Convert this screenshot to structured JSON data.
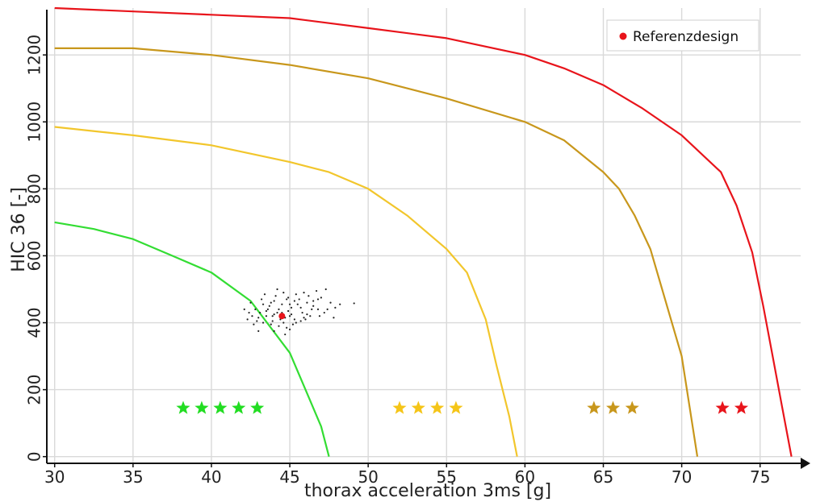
{
  "chart_data": {
    "type": "line",
    "xlabel": "thorax acceleration 3ms [g]",
    "ylabel": "HIC 36 [-]",
    "xlim": [
      29.5,
      78
    ],
    "ylim": [
      -20,
      1340
    ],
    "xticks": [
      30,
      35,
      40,
      45,
      50,
      55,
      60,
      65,
      70,
      75
    ],
    "yticks": [
      0,
      200,
      400,
      600,
      800,
      1000,
      1200
    ],
    "grid": true,
    "legend": {
      "placement": "top-right",
      "entries": [
        {
          "label": "Referenzdesign",
          "color": "#e8141b",
          "marker": "dot"
        }
      ]
    },
    "series": [
      {
        "color": "#33dd33",
        "points": [
          [
            30,
            700
          ],
          [
            32.5,
            680
          ],
          [
            35,
            650
          ],
          [
            37.5,
            600
          ],
          [
            40,
            550
          ],
          [
            42.5,
            465
          ],
          [
            45,
            310
          ],
          [
            46,
            200
          ],
          [
            47,
            90
          ],
          [
            47.5,
            0
          ]
        ]
      },
      {
        "color": "#f2c62c",
        "points": [
          [
            30,
            985
          ],
          [
            35,
            960
          ],
          [
            40,
            930
          ],
          [
            45,
            880
          ],
          [
            47.5,
            850
          ],
          [
            50,
            800
          ],
          [
            52.5,
            720
          ],
          [
            55,
            620
          ],
          [
            56.3,
            550
          ],
          [
            57.5,
            410
          ],
          [
            58.2,
            270
          ],
          [
            59,
            120
          ],
          [
            59.5,
            0
          ]
        ]
      },
      {
        "color": "#c8971c",
        "points": [
          [
            30,
            1220
          ],
          [
            35,
            1220
          ],
          [
            40,
            1200
          ],
          [
            45,
            1170
          ],
          [
            50,
            1130
          ],
          [
            55,
            1070
          ],
          [
            60,
            1000
          ],
          [
            62.5,
            945
          ],
          [
            65,
            850
          ],
          [
            66,
            800
          ],
          [
            67,
            720
          ],
          [
            68,
            620
          ],
          [
            69,
            460
          ],
          [
            70,
            300
          ],
          [
            70.5,
            150
          ],
          [
            71,
            0
          ]
        ]
      },
      {
        "color": "#e8141b",
        "points": [
          [
            30,
            1340
          ],
          [
            35,
            1330
          ],
          [
            40,
            1320
          ],
          [
            45,
            1310
          ],
          [
            50,
            1280
          ],
          [
            55,
            1250
          ],
          [
            60,
            1200
          ],
          [
            62.5,
            1160
          ],
          [
            65,
            1110
          ],
          [
            67.5,
            1040
          ],
          [
            70,
            960
          ],
          [
            72.5,
            850
          ],
          [
            73.5,
            750
          ],
          [
            74.5,
            610
          ],
          [
            75.2,
            450
          ],
          [
            75.8,
            300
          ],
          [
            76.4,
            150
          ],
          [
            77,
            0
          ]
        ]
      }
    ],
    "reference_point": {
      "x": 44.5,
      "y": 420,
      "color": "#e8141b"
    },
    "cloud": [
      [
        43.0,
        415
      ],
      [
        43.5,
        420
      ],
      [
        44.0,
        425
      ],
      [
        44.2,
        430
      ],
      [
        44.7,
        415
      ],
      [
        45.0,
        420
      ],
      [
        45.3,
        410
      ],
      [
        43.7,
        450
      ],
      [
        44.5,
        455
      ],
      [
        45.1,
        445
      ],
      [
        42.8,
        440
      ],
      [
        42.5,
        460
      ],
      [
        43.2,
        470
      ],
      [
        44.1,
        480
      ],
      [
        45.6,
        470
      ],
      [
        46.1,
        460
      ],
      [
        46.5,
        450
      ],
      [
        46.8,
        440
      ],
      [
        47.2,
        430
      ],
      [
        46.3,
        420
      ],
      [
        45.7,
        405
      ],
      [
        45.2,
        395
      ],
      [
        44.8,
        385
      ],
      [
        44.3,
        390
      ],
      [
        43.8,
        395
      ],
      [
        43.3,
        400
      ],
      [
        42.9,
        405
      ],
      [
        42.6,
        420
      ],
      [
        44.6,
        490
      ],
      [
        45.4,
        485
      ],
      [
        46.2,
        480
      ],
      [
        46.8,
        470
      ],
      [
        47.6,
        460
      ],
      [
        48.2,
        455
      ],
      [
        49.1,
        458
      ],
      [
        47.9,
        445
      ],
      [
        47.4,
        440
      ],
      [
        44.0,
        375
      ],
      [
        44.7,
        365
      ],
      [
        45.0,
        380
      ],
      [
        43.6,
        440
      ],
      [
        44.9,
        435
      ],
      [
        45.8,
        430
      ],
      [
        44.4,
        410
      ],
      [
        43.9,
        405
      ],
      [
        45.5,
        455
      ],
      [
        44.8,
        470
      ],
      [
        43.4,
        485
      ],
      [
        45.9,
        490
      ],
      [
        46.7,
        495
      ],
      [
        47.3,
        500
      ],
      [
        42.3,
        410
      ],
      [
        42.1,
        440
      ],
      [
        43.1,
        430
      ],
      [
        46.0,
        410
      ],
      [
        47.0,
        475
      ],
      [
        45.3,
        465
      ],
      [
        44.2,
        500
      ],
      [
        43.8,
        460
      ],
      [
        46.4,
        440
      ],
      [
        45.1,
        425
      ],
      [
        44.3,
        440
      ],
      [
        45.7,
        445
      ],
      [
        43.5,
        435
      ],
      [
        46.9,
        420
      ],
      [
        44.0,
        465
      ],
      [
        45.0,
        455
      ],
      [
        47.8,
        415
      ],
      [
        42.7,
        395
      ],
      [
        43.0,
        375
      ],
      [
        44.6,
        400
      ],
      [
        45.9,
        415
      ],
      [
        46.5,
        465
      ],
      [
        44.5,
        430
      ],
      [
        43.3,
        455
      ],
      [
        45.4,
        400
      ],
      [
        42.4,
        430
      ],
      [
        46.1,
        425
      ],
      [
        44.9,
        475
      ],
      [
        43.9,
        420
      ]
    ],
    "ratings": [
      {
        "count": 5,
        "color": "#22dd22",
        "x_start": 38.2,
        "x_step": 1.18,
        "y": 145
      },
      {
        "count": 4,
        "color": "#f5c518",
        "x_start": 52.0,
        "x_step": 1.2,
        "y": 145
      },
      {
        "count": 3,
        "color": "#c8971c",
        "x_start": 64.4,
        "x_step": 1.22,
        "y": 145
      },
      {
        "count": 2,
        "color": "#e8141b",
        "x_start": 72.6,
        "x_step": 1.2,
        "y": 145
      }
    ]
  }
}
